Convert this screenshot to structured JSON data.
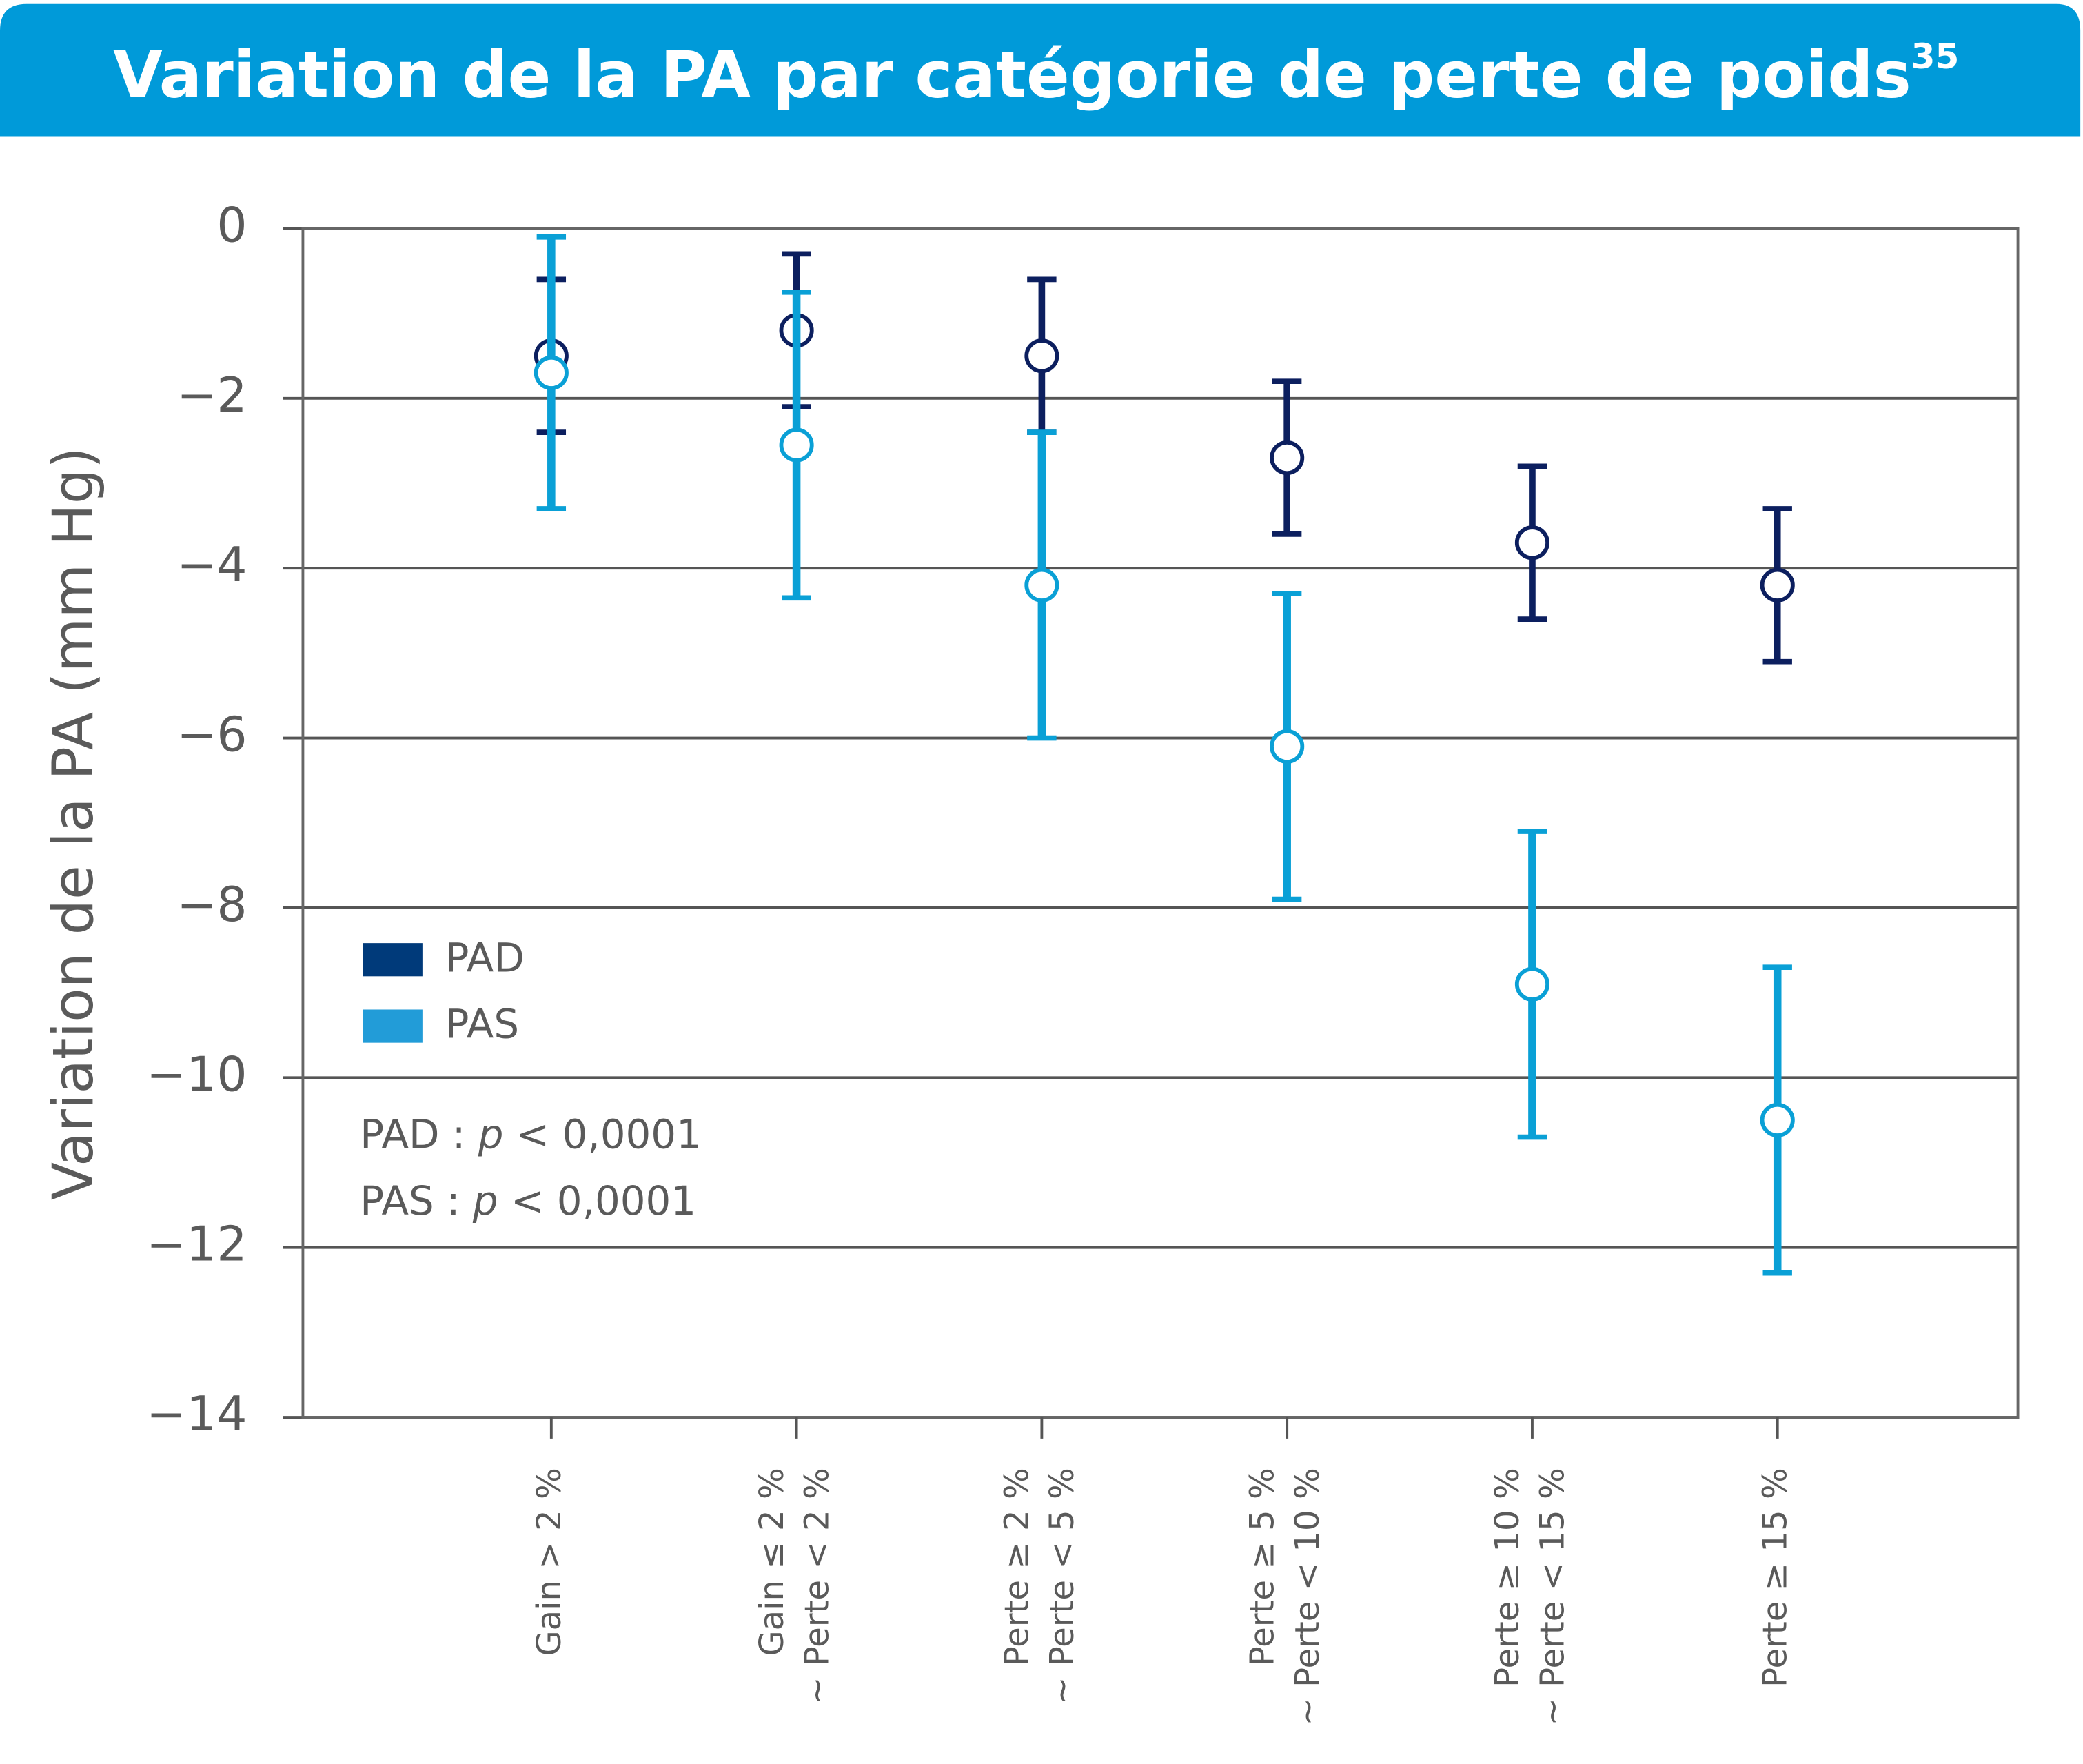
{
  "chart_data": {
    "type": "errorbar",
    "title": "Variation de la PA par catégorie de perte de poids",
    "title_ref": "35",
    "y_label": "Variation de la PA (mm Hg)",
    "categories": [
      [
        "Gain > 2 %"
      ],
      [
        "Gain ≤ 2 %",
        "~ Perte < 2 %"
      ],
      [
        "Perte ≥ 2 %",
        "~ Perte < 5 %"
      ],
      [
        "Perte ≥ 5 %",
        "~ Perte < 10 %"
      ],
      [
        "Perte ≥ 10 %",
        "~ Perte < 15 %"
      ],
      [
        "Perte ≥ 15 %"
      ]
    ],
    "series": [
      {
        "name": "PAD",
        "color": "#0c1f5f",
        "legend_color": "#003a7a",
        "values": [
          -1.5,
          -1.2,
          -1.5,
          -2.7,
          -3.7,
          -4.2
        ],
        "error": [
          0.9,
          0.9,
          0.9,
          0.9,
          0.9,
          0.9
        ]
      },
      {
        "name": "PAS",
        "color": "#0aa0d6",
        "legend_color": "#229cd8",
        "values": [
          -1.7,
          -2.55,
          -4.2,
          -6.1,
          -8.9,
          -10.5
        ],
        "error": [
          1.6,
          1.8,
          1.8,
          1.8,
          1.8,
          1.8
        ]
      }
    ],
    "annotations": [
      [
        "PAD : ",
        "p",
        " < 0,0001"
      ],
      [
        "PAS : ",
        "p",
        " < 0,0001"
      ]
    ],
    "ylim": [
      -14,
      0
    ],
    "yticks": [
      {
        "value": 0,
        "label": "0"
      },
      {
        "value": -2,
        "label": "−2"
      },
      {
        "value": -4,
        "label": "−4"
      },
      {
        "value": -6,
        "label": "−6"
      },
      {
        "value": -8,
        "label": "−8"
      },
      {
        "value": -10,
        "label": "−10"
      },
      {
        "value": -12,
        "label": "−12"
      },
      {
        "value": -14,
        "label": "−14"
      }
    ],
    "grid": true
  }
}
